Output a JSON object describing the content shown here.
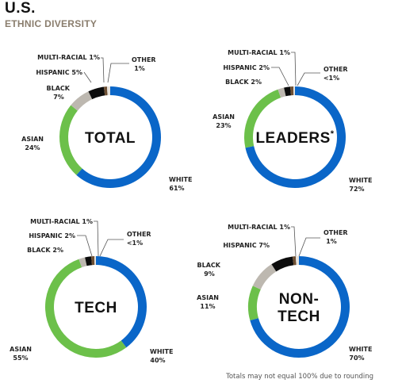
{
  "page": {
    "title": "U.S.",
    "subtitle": "ETHNIC DIVERSITY",
    "footnote": "Totals may not equal 100% due to rounding"
  },
  "colors": {
    "White": "#0a66c8",
    "Asian": "#6cc04a",
    "Black": "#bdb8b0",
    "Hispanic": "#0c0c0c",
    "Multi-Racial": "#6d4f33",
    "Other": "#e6e2dc"
  },
  "chart_data": [
    {
      "type": "pie",
      "title": "TOTAL",
      "categories": [
        "White",
        "Asian",
        "Black",
        "Hispanic",
        "Multi-Racial",
        "Other"
      ],
      "values": [
        61,
        24,
        7,
        5,
        1,
        1
      ],
      "labels": {
        "White": {
          "name": "WHITE",
          "value": "61%"
        },
        "Asian": {
          "name": "ASIAN",
          "value": "24%"
        },
        "Black": {
          "name": "BLACK",
          "value": "7%"
        },
        "Hispanic": {
          "name": "HISPANIC",
          "value": "5%"
        },
        "Multi-Racial": {
          "name": "MULTI-RACIAL",
          "value": "1%"
        },
        "Other": {
          "name": "OTHER",
          "value": "1%"
        }
      }
    },
    {
      "type": "pie",
      "title": "LEADERS*",
      "categories": [
        "White",
        "Asian",
        "Black",
        "Hispanic",
        "Multi-Racial",
        "Other"
      ],
      "values": [
        72,
        23,
        2,
        2,
        1,
        0.5
      ],
      "labels": {
        "White": {
          "name": "WHITE",
          "value": "72%"
        },
        "Asian": {
          "name": "ASIAN",
          "value": "23%"
        },
        "Black": {
          "name": "BLACK",
          "value": "2%"
        },
        "Hispanic": {
          "name": "HISPANIC",
          "value": "2%"
        },
        "Multi-Racial": {
          "name": "MULTI-RACIAL",
          "value": "1%"
        },
        "Other": {
          "name": "OTHER",
          "value": "<1%"
        }
      }
    },
    {
      "type": "pie",
      "title": "TECH",
      "categories": [
        "White",
        "Asian",
        "Black",
        "Hispanic",
        "Multi-Racial",
        "Other"
      ],
      "values": [
        40,
        55,
        2,
        2,
        1,
        0.5
      ],
      "labels": {
        "White": {
          "name": "WHITE",
          "value": "40%"
        },
        "Asian": {
          "name": "ASIAN",
          "value": "55%"
        },
        "Black": {
          "name": "BLACK",
          "value": "2%"
        },
        "Hispanic": {
          "name": "HISPANIC",
          "value": "2%"
        },
        "Multi-Racial": {
          "name": "MULTI-RACIAL",
          "value": "1%"
        },
        "Other": {
          "name": "OTHER",
          "value": "<1%"
        }
      }
    },
    {
      "type": "pie",
      "title": "NON-\nTECH",
      "categories": [
        "White",
        "Asian",
        "Black",
        "Hispanic",
        "Multi-Racial",
        "Other"
      ],
      "values": [
        70,
        11,
        9,
        7,
        1,
        1
      ],
      "labels": {
        "White": {
          "name": "WHITE",
          "value": "70%"
        },
        "Asian": {
          "name": "ASIAN",
          "value": "11%"
        },
        "Black": {
          "name": "BLACK",
          "value": "9%"
        },
        "Hispanic": {
          "name": "HISPANIC",
          "value": "7%"
        },
        "Multi-Racial": {
          "name": "MULTI-RACIAL",
          "value": "1%"
        },
        "Other": {
          "name": "OTHER",
          "value": "1%"
        }
      }
    }
  ]
}
